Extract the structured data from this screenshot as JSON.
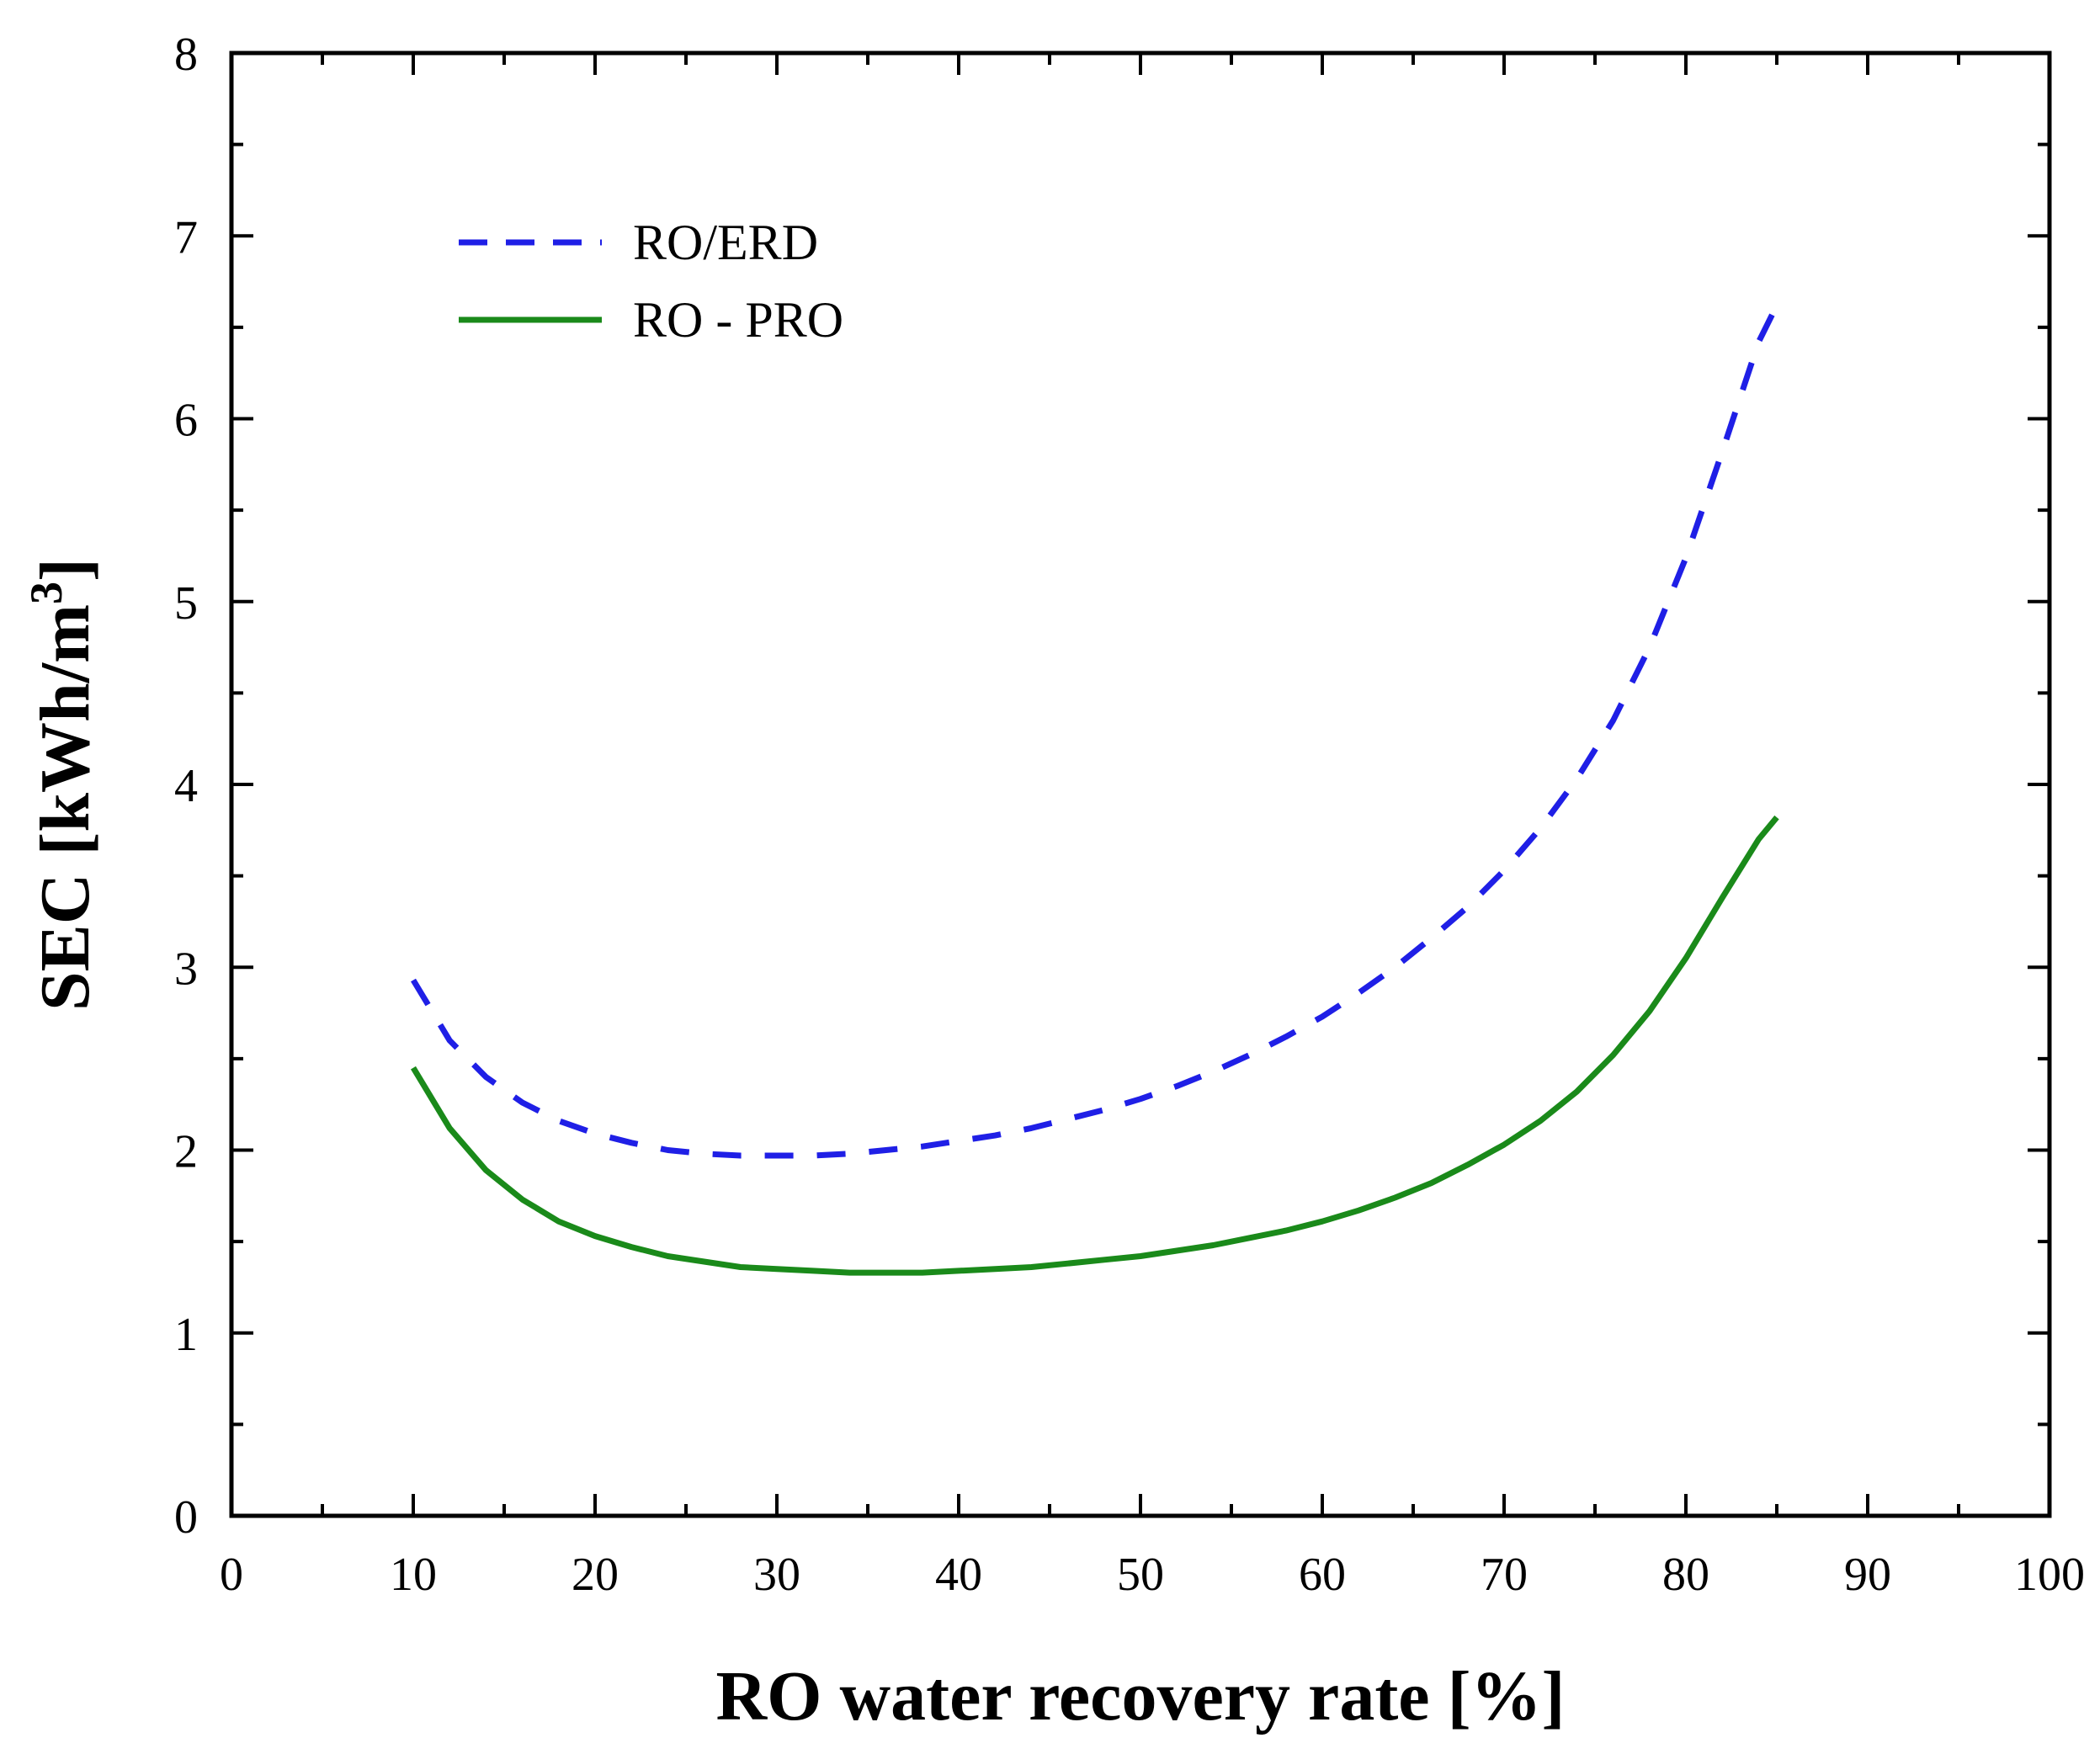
{
  "chart_data": {
    "type": "line",
    "title": "",
    "xlabel": "RO  water recovery rate [%]",
    "ylabel_main": "SEC [kWh/m",
    "ylabel_sup": "3",
    "ylabel_end": "]",
    "xlim": [
      0,
      100
    ],
    "ylim": [
      0,
      8
    ],
    "xticks": [
      0,
      10,
      20,
      30,
      40,
      50,
      60,
      70,
      80,
      90,
      100
    ],
    "yticks": [
      0,
      1,
      2,
      3,
      4,
      5,
      6,
      7,
      8
    ],
    "x_minor_step": 5,
    "y_minor_step": 0.5,
    "legend_position": "top-left",
    "series": [
      {
        "name": "RO/ERD",
        "style": "dashed",
        "color": "#1f1fe6",
        "x": [
          10,
          12,
          14,
          16,
          18,
          20,
          22,
          24,
          26,
          28,
          30,
          32,
          34,
          36,
          38,
          40,
          42,
          44,
          46,
          48,
          50,
          52,
          54,
          56,
          58,
          60,
          62,
          64,
          66,
          68,
          70,
          72,
          74,
          76,
          78,
          80,
          82,
          84,
          85
        ],
        "y": [
          2.93,
          2.6,
          2.4,
          2.26,
          2.16,
          2.09,
          2.04,
          2.0,
          1.98,
          1.97,
          1.97,
          1.97,
          1.98,
          2.0,
          2.02,
          2.05,
          2.08,
          2.12,
          2.17,
          2.22,
          2.28,
          2.35,
          2.43,
          2.52,
          2.62,
          2.73,
          2.86,
          3.0,
          3.16,
          3.33,
          3.53,
          3.76,
          4.03,
          4.35,
          4.75,
          5.24,
          5.82,
          6.42,
          6.62
        ]
      },
      {
        "name": "RO - PRO",
        "style": "solid",
        "color": "#1a8a1a",
        "x": [
          10,
          12,
          14,
          16,
          18,
          20,
          22,
          24,
          26,
          28,
          30,
          32,
          34,
          36,
          38,
          40,
          42,
          44,
          46,
          48,
          50,
          52,
          54,
          56,
          58,
          60,
          62,
          64,
          66,
          68,
          70,
          72,
          74,
          76,
          78,
          80,
          82,
          84,
          85
        ],
        "y": [
          2.45,
          2.12,
          1.89,
          1.73,
          1.61,
          1.53,
          1.47,
          1.42,
          1.39,
          1.36,
          1.35,
          1.34,
          1.33,
          1.33,
          1.33,
          1.34,
          1.35,
          1.36,
          1.38,
          1.4,
          1.42,
          1.45,
          1.48,
          1.52,
          1.56,
          1.61,
          1.67,
          1.74,
          1.82,
          1.92,
          2.03,
          2.16,
          2.32,
          2.52,
          2.76,
          3.05,
          3.38,
          3.7,
          3.82
        ]
      }
    ]
  }
}
